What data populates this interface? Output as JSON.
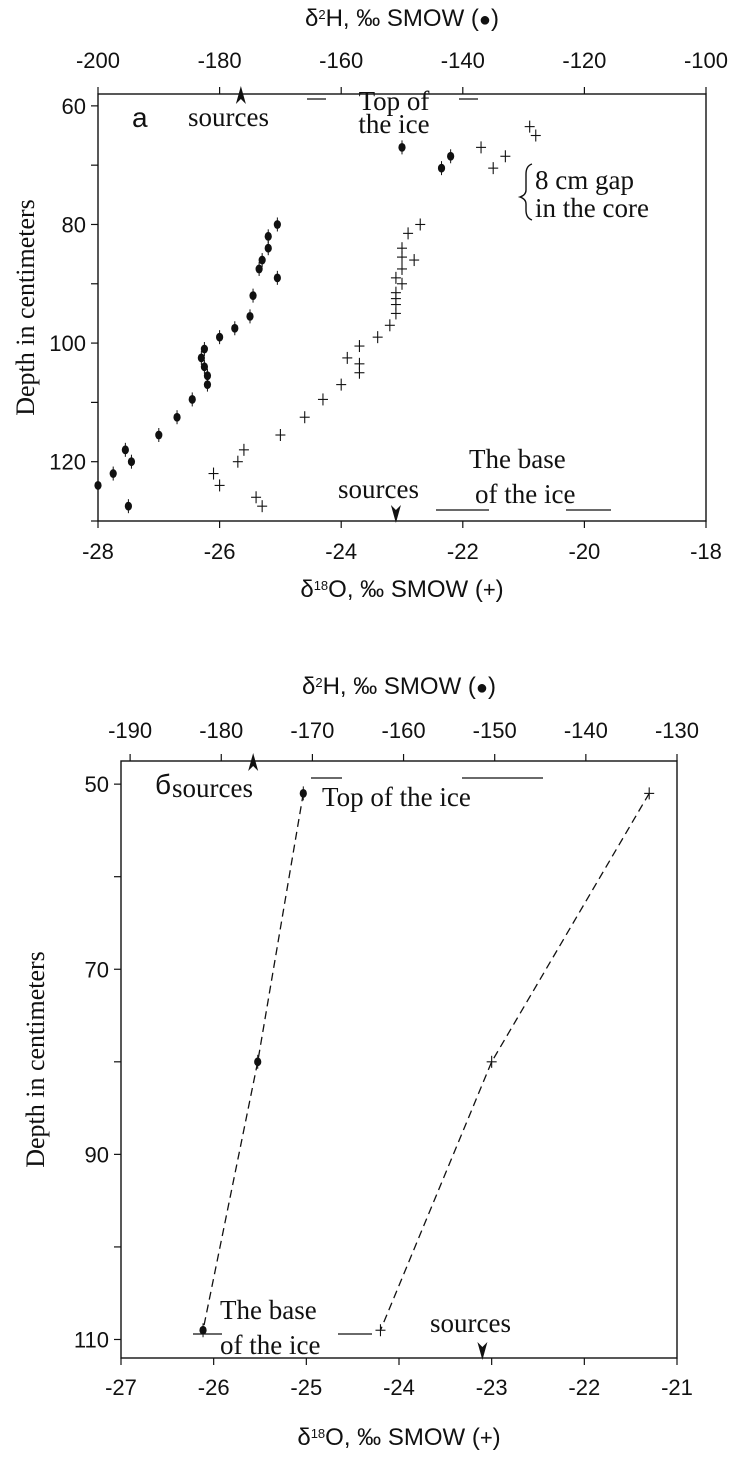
{
  "chart_data": [
    {
      "type": "scatter",
      "panel_label": "а",
      "top_axis": {
        "label_main": "δ",
        "label_sup": "2",
        "label_rest": "H, ‰ SMOW (",
        "label_marker": "●",
        "label_close": ")",
        "range": [
          -200,
          -100
        ],
        "ticks": [
          "-200",
          "-180",
          "-160",
          "-140",
          "-120",
          "-100"
        ]
      },
      "bottom_axis": {
        "label_main": "δ",
        "label_sup": "18",
        "label_rest": "O, ‰ SMOW (",
        "label_marker": "+",
        "label_close": ")",
        "range": [
          -28,
          -18
        ],
        "ticks": [
          "-28",
          "-26",
          "-24",
          "-22",
          "-20",
          "-18"
        ]
      },
      "y_axis": {
        "label": "Depth in centimeters",
        "range": [
          58,
          130
        ],
        "inverted": true,
        "ticks": [
          "60",
          "80",
          "100",
          "120"
        ]
      },
      "annotations": {
        "top_sources": "sources",
        "top_of_ice_line1": "Top of",
        "top_of_ice_line2": "the ice",
        "gap_line1": "8 cm gap",
        "gap_line2": "in the core",
        "bottom_sources": "sources",
        "base_line1": "The base",
        "base_line2": "of the ice"
      },
      "sources_top_d2H": -176.5,
      "sources_bottom_d18O": -23.1,
      "series": [
        {
          "marker": "dot",
          "axis": "top",
          "points": [
            [
              -150,
              67
            ],
            [
              -142,
              68.5
            ],
            [
              -143.5,
              70.5
            ],
            [
              -170.5,
              80
            ],
            [
              -172,
              82
            ],
            [
              -172,
              84
            ],
            [
              -173,
              86
            ],
            [
              -173.5,
              87.5
            ],
            [
              -170.5,
              89
            ],
            [
              -174.5,
              92
            ],
            [
              -175,
              95.5
            ],
            [
              -177.5,
              97.5
            ],
            [
              -180,
              99
            ],
            [
              -182.5,
              101
            ],
            [
              -183,
              102.5
            ],
            [
              -182.5,
              104
            ],
            [
              -182,
              105.5
            ],
            [
              -182,
              107
            ],
            [
              -184.5,
              109.5
            ],
            [
              -187,
              112.5
            ],
            [
              -190,
              115.5
            ],
            [
              -195.5,
              118
            ],
            [
              -194.5,
              120
            ],
            [
              -197.5,
              122
            ],
            [
              -200,
              124
            ],
            [
              -195,
              127.5
            ]
          ]
        },
        {
          "marker": "plus",
          "axis": "bottom",
          "points": [
            [
              -20.9,
              63.5
            ],
            [
              -20.8,
              65
            ],
            [
              -21.7,
              67
            ],
            [
              -21.3,
              68.5
            ],
            [
              -21.5,
              70.5
            ],
            [
              -22.7,
              80
            ],
            [
              -22.9,
              81.5
            ],
            [
              -23.0,
              84
            ],
            [
              -23.0,
              85.5
            ],
            [
              -22.8,
              86
            ],
            [
              -23.0,
              87.5
            ],
            [
              -23.1,
              89
            ],
            [
              -23.0,
              90
            ],
            [
              -23.1,
              91.5
            ],
            [
              -23.1,
              92.5
            ],
            [
              -23.1,
              93.5
            ],
            [
              -23.1,
              95
            ],
            [
              -23.2,
              97
            ],
            [
              -23.4,
              99
            ],
            [
              -23.7,
              100.5
            ],
            [
              -23.9,
              102.5
            ],
            [
              -23.7,
              103.5
            ],
            [
              -23.7,
              105
            ],
            [
              -24.0,
              107
            ],
            [
              -24.3,
              109.5
            ],
            [
              -24.6,
              112.5
            ],
            [
              -25.0,
              115.5
            ],
            [
              -25.6,
              118
            ],
            [
              -25.7,
              120
            ],
            [
              -26.1,
              122
            ],
            [
              -26.0,
              124
            ],
            [
              -25.4,
              126
            ],
            [
              -25.3,
              127.5
            ]
          ]
        }
      ]
    },
    {
      "type": "line",
      "panel_label": "б",
      "top_axis": {
        "label_main": "δ",
        "label_sup": "2",
        "label_rest": "H, ‰ SMOW (",
        "label_marker": "●",
        "label_close": ")",
        "range": [
          -191,
          -130
        ],
        "ticks": [
          "-190",
          "-180",
          "-170",
          "-160",
          "-150",
          "-140",
          "-130"
        ]
      },
      "bottom_axis": {
        "label_main": "δ",
        "label_sup": "18",
        "label_rest": "O, ‰ SMOW (",
        "label_marker": "+",
        "label_close": ")",
        "range": [
          -27,
          -21
        ],
        "ticks": [
          "-27",
          "-26",
          "-25",
          "-24",
          "-23",
          "-22",
          "-21"
        ]
      },
      "y_axis": {
        "label": "Depth in centimeters",
        "range": [
          47.5,
          112
        ],
        "inverted": true,
        "ticks": [
          "50",
          "70",
          "90",
          "110"
        ]
      },
      "annotations": {
        "top_sources": "sources",
        "top_of_ice": "Top of the ice",
        "bottom_sources": "sources",
        "base_line1": "The base",
        "base_line2": "of the ice"
      },
      "sources_top_d2H": -176.5,
      "sources_bottom_d18O": -23.1,
      "series": [
        {
          "marker": "dot",
          "axis": "top",
          "dashed": true,
          "points": [
            [
              -171,
              51
            ],
            [
              -176,
              80
            ],
            [
              -182,
              109
            ]
          ]
        },
        {
          "marker": "plus",
          "axis": "bottom",
          "dashed": true,
          "points": [
            [
              -21.3,
              51
            ],
            [
              -23.0,
              80
            ],
            [
              -24.2,
              109
            ]
          ]
        }
      ]
    }
  ]
}
